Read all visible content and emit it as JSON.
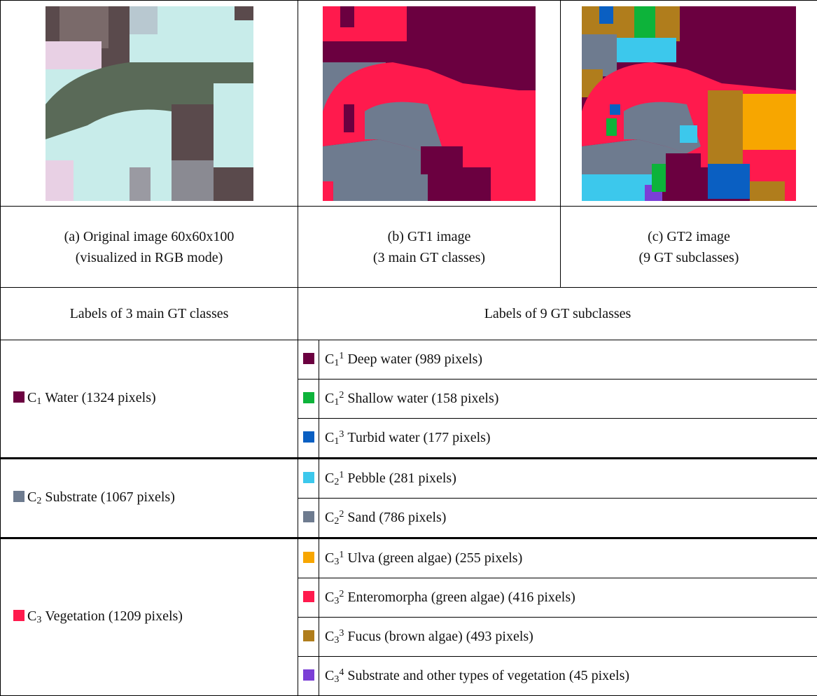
{
  "figures": [
    {
      "caption": [
        "(a) Original image 60x60x100",
        "(visualized in RGB mode)"
      ]
    },
    {
      "caption": [
        "(b) GT1 image",
        "(3 main GT classes)"
      ]
    },
    {
      "caption": [
        "(c) GT2 image",
        "(9 GT subclasses)"
      ]
    }
  ],
  "headers": [
    "Labels of 3 main GT classes",
    "Labels of 9 GT subclasses"
  ],
  "classes": [
    {
      "symbol": "C",
      "sub": "1",
      "text": "Water (1324 pixels)",
      "color": "#6b0040",
      "subclasses": [
        {
          "symbol": "C",
          "sub": "1",
          "sup": "1",
          "text": "Deep water (989 pixels)",
          "color": "#6b0040"
        },
        {
          "symbol": "C",
          "sub": "1",
          "sup": "2",
          "text": "Shallow water (158 pixels)",
          "color": "#0db33a"
        },
        {
          "symbol": "C",
          "sub": "1",
          "sup": "3",
          "text": "Turbid water (177 pixels)",
          "color": "#0a5fc2"
        }
      ]
    },
    {
      "symbol": "C",
      "sub": "2",
      "text": "Substrate (1067 pixels)",
      "color": "#6e7b8f",
      "subclasses": [
        {
          "symbol": "C",
          "sub": "2",
          "sup": "1",
          "text": "Pebble (281 pixels)",
          "color": "#3cc8ec"
        },
        {
          "symbol": "C",
          "sub": "2",
          "sup": "2",
          "text": "Sand (786 pixels)",
          "color": "#6e7b8f"
        }
      ]
    },
    {
      "symbol": "C",
      "sub": "3",
      "text": "Vegetation (1209 pixels)",
      "color": "#ff1a4d",
      "subclasses": [
        {
          "symbol": "C",
          "sub": "3",
          "sup": "1",
          "text": "Ulva (green algae) (255 pixels)",
          "color": "#f7a600"
        },
        {
          "symbol": "C",
          "sub": "3",
          "sup": "2",
          "text": "Enteromorpha (green algae) (416 pixels)",
          "color": "#ff1a4d"
        },
        {
          "symbol": "C",
          "sub": "3",
          "sup": "3",
          "text": "Fucus (brown algae) (493 pixels)",
          "color": "#b07d1c"
        },
        {
          "symbol": "C",
          "sub": "3",
          "sup": "4",
          "text": "Substrate and other types of vegetation (45 pixels)",
          "color": "#7b3fd6"
        }
      ]
    }
  ]
}
